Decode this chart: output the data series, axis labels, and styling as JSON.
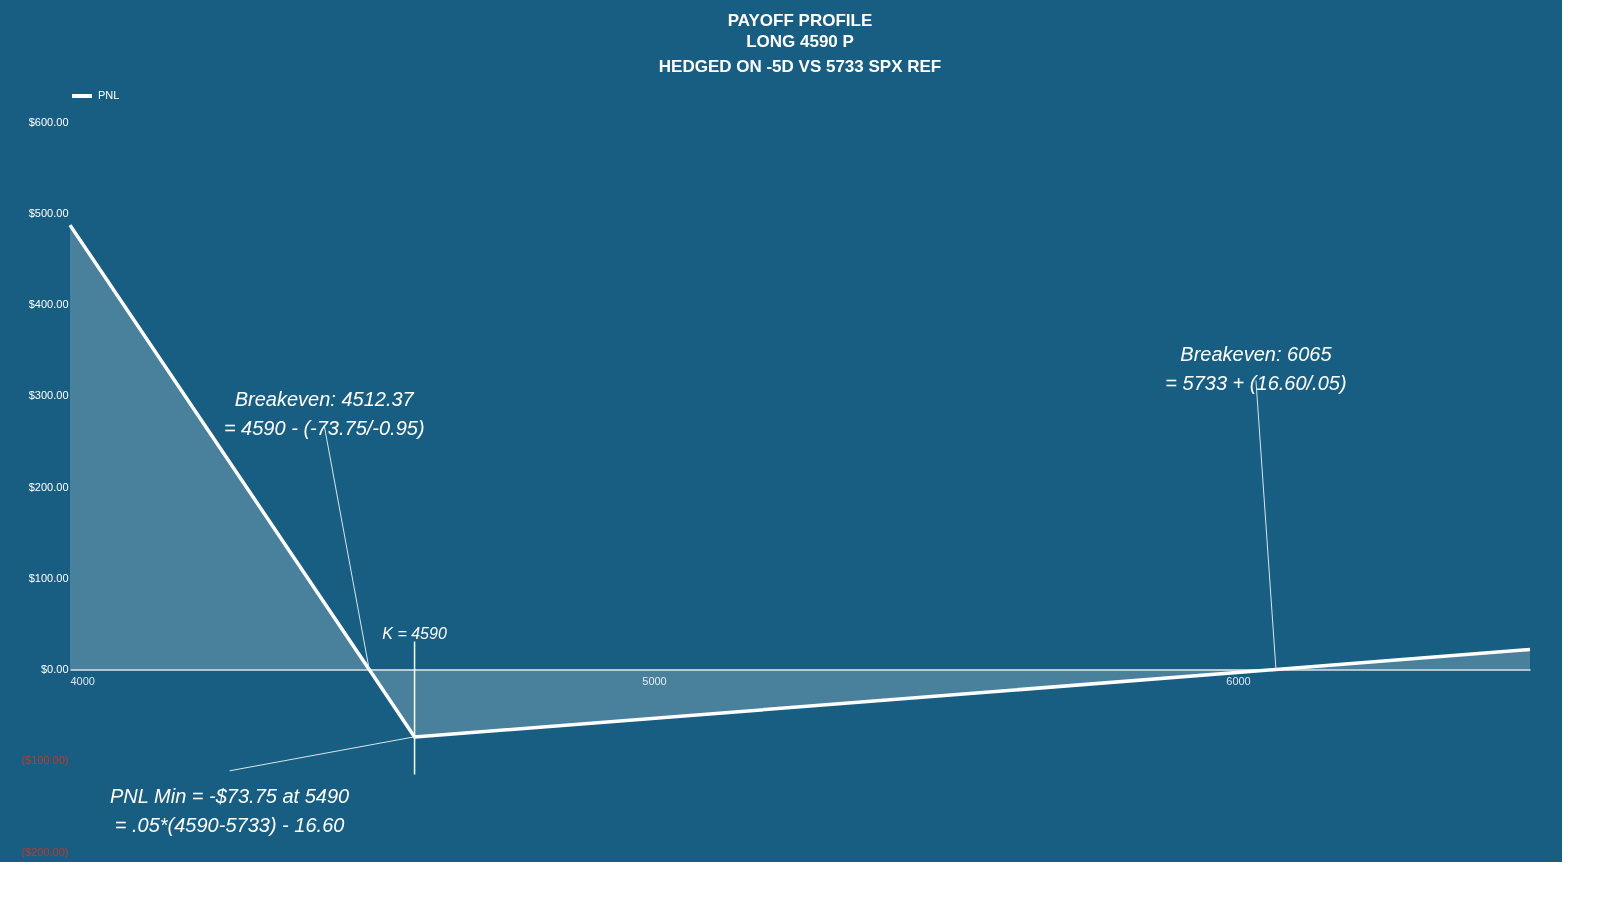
{
  "chart_data": {
    "type": "area",
    "title": "PAYOFF PROFILE",
    "subtitle": "LONG 4590 P\nHEDGED ON -5D VS 5733 SPX REF",
    "x": [
      4000,
      4512.37,
      4590,
      6065,
      6500
    ],
    "series": [
      {
        "name": "PNL",
        "color": "#ffffff",
        "values": [
          487,
          0,
          -74,
          0,
          22
        ]
      }
    ],
    "xlim": [
      4000,
      6500
    ],
    "xticks": [
      4000,
      5000,
      6000
    ],
    "ylim": [
      -200,
      600
    ],
    "yticks": [
      {
        "value": -200,
        "label": "($200.00)"
      },
      {
        "value": -100,
        "label": "($100.00)"
      },
      {
        "value": 0,
        "label": "$0.00"
      },
      {
        "value": 100,
        "label": "$100.00"
      },
      {
        "value": 200,
        "label": "$200.00"
      },
      {
        "value": 300,
        "label": "$300.00"
      },
      {
        "value": 400,
        "label": "$400.00"
      },
      {
        "value": 500,
        "label": "$500.00"
      },
      {
        "value": 600,
        "label": "$600.00"
      }
    ],
    "ref_lines": [
      {
        "axis": "x",
        "value": 4590,
        "label": "K = 4590",
        "color": "#ffffff"
      }
    ],
    "annotations": [
      {
        "text": "Breakeven: 4512.37\n= 4590 - (-73.75/-0.95)",
        "x": 4512.37,
        "y": 0
      },
      {
        "text": "Breakeven: 6065\n= 5733 + (16.60/.05)",
        "x": 6065,
        "y": 0
      },
      {
        "text": "PNL Min = -$73.75 at 5490\n= .05*(4590-5733) - 16.60",
        "x": 4590,
        "y": -73.75
      }
    ],
    "legend": "top",
    "grid": false
  }
}
